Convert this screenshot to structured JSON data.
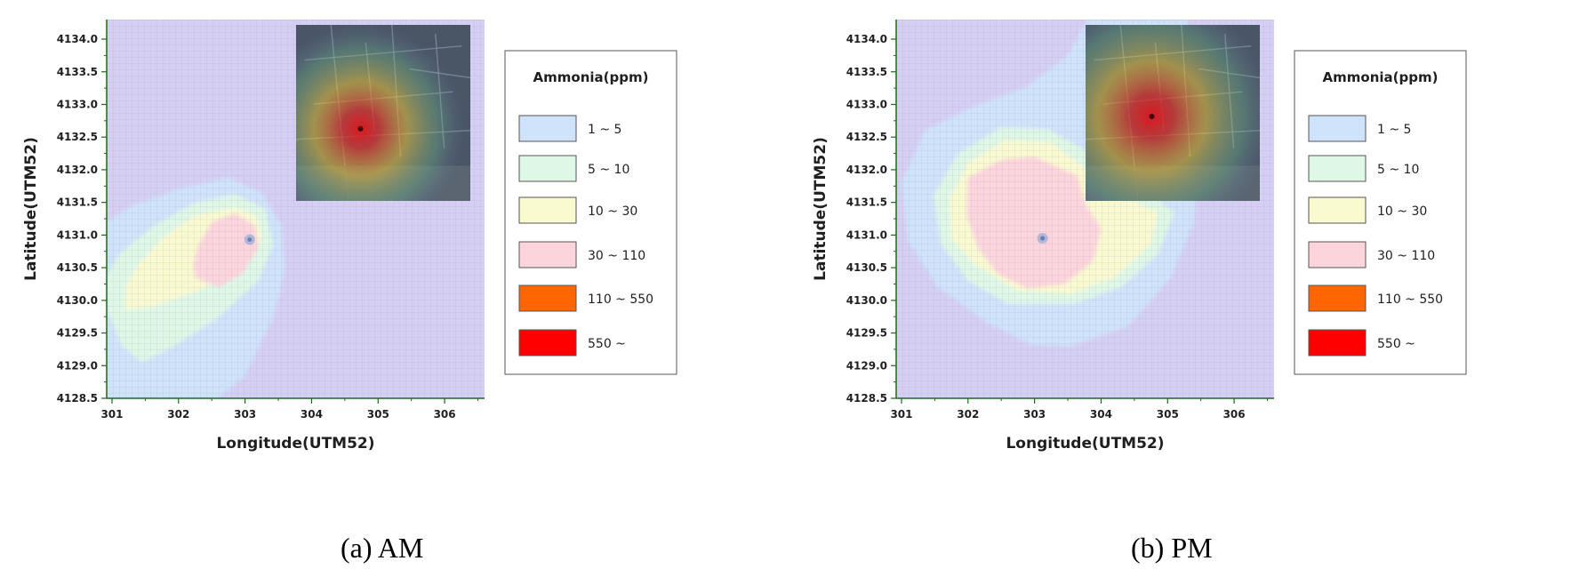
{
  "captions": [
    "(a) AM",
    "(b) PM"
  ],
  "chart_data": [
    {
      "type": "heatmap",
      "xlabel": "Longitude(UTM52)",
      "ylabel": "Latitude(UTM52)",
      "xlim": [
        300.92,
        306.6
      ],
      "ylim": [
        4128.5,
        4134.3
      ],
      "x_ticks": [
        "301",
        "302",
        "303",
        "304",
        "305",
        "306"
      ],
      "y_ticks": [
        "4128.5",
        "4129.0",
        "4129.5",
        "4130.0",
        "4130.5",
        "4131.0",
        "4131.5",
        "4132.0",
        "4132.5",
        "4133.0",
        "4133.5",
        "4134.0"
      ],
      "grid": true,
      "source_point": {
        "x": 303.07,
        "y": 4130.93
      },
      "plume_levels": [
        {
          "level": "1 ~ 5",
          "polygon": [
            [
              300.92,
              4128.5
            ],
            [
              302.6,
              4128.5
            ],
            [
              303.0,
              4128.85
            ],
            [
              303.45,
              4129.8
            ],
            [
              303.6,
              4130.5
            ],
            [
              303.55,
              4131.15
            ],
            [
              303.25,
              4131.65
            ],
            [
              302.75,
              4131.88
            ],
            [
              302.05,
              4131.72
            ],
            [
              301.3,
              4131.45
            ],
            [
              300.92,
              4131.2
            ]
          ]
        },
        {
          "level": "5 ~ 10",
          "polygon": [
            [
              301.45,
              4129.05
            ],
            [
              301.85,
              4129.25
            ],
            [
              302.55,
              4129.7
            ],
            [
              303.2,
              4130.3
            ],
            [
              303.42,
              4130.85
            ],
            [
              303.3,
              4131.4
            ],
            [
              302.85,
              4131.62
            ],
            [
              302.25,
              4131.5
            ],
            [
              301.6,
              4131.12
            ],
            [
              301.1,
              4130.7
            ],
            [
              300.92,
              4130.35
            ],
            [
              300.95,
              4129.8
            ],
            [
              301.15,
              4129.3
            ]
          ]
        },
        {
          "level": "10 ~ 30",
          "polygon": [
            [
              301.2,
              4129.85
            ],
            [
              301.6,
              4129.9
            ],
            [
              302.3,
              4130.15
            ],
            [
              302.95,
              4130.5
            ],
            [
              303.25,
              4130.95
            ],
            [
              303.18,
              4131.28
            ],
            [
              302.85,
              4131.42
            ],
            [
              302.25,
              4131.3
            ],
            [
              301.75,
              4130.95
            ],
            [
              301.4,
              4130.55
            ],
            [
              301.2,
              4130.2
            ]
          ]
        },
        {
          "level": "30 ~ 110",
          "polygon": [
            [
              302.25,
              4130.35
            ],
            [
              302.6,
              4130.2
            ],
            [
              302.95,
              4130.4
            ],
            [
              303.2,
              4130.8
            ],
            [
              303.15,
              4131.15
            ],
            [
              302.85,
              4131.33
            ],
            [
              302.5,
              4131.2
            ],
            [
              302.3,
              4130.85
            ],
            [
              302.22,
              4130.55
            ]
          ]
        }
      ],
      "legend": {
        "title": "Ammonia(ppm)",
        "entries": [
          {
            "label": "1 ~ 5",
            "color": "#cfe4fa"
          },
          {
            "label": "5 ~ 10",
            "color": "#dff8e6"
          },
          {
            "label": "10 ~ 30",
            "color": "#fafad0"
          },
          {
            "label": "30 ~ 110",
            "color": "#fcd5dc"
          },
          {
            "label": "110 ~ 550",
            "color": "#ff6600"
          },
          {
            "label": "550 ~",
            "color": "#ff0000"
          }
        ]
      },
      "background_color": "#d5cff4"
    },
    {
      "type": "heatmap",
      "xlabel": "Longitude(UTM52)",
      "ylabel": "Latitude(UTM52)",
      "xlim": [
        300.92,
        306.6
      ],
      "ylim": [
        4128.5,
        4134.3
      ],
      "x_ticks": [
        "301",
        "302",
        "303",
        "304",
        "305",
        "306"
      ],
      "y_ticks": [
        "4128.5",
        "4129.0",
        "4129.5",
        "4130.0",
        "4130.5",
        "4131.0",
        "4131.5",
        "4132.0",
        "4132.5",
        "4133.0",
        "4133.5",
        "4134.0"
      ],
      "grid": true,
      "source_point": {
        "x": 303.12,
        "y": 4130.95
      },
      "plume_levels": [
        {
          "level": "1 ~ 5",
          "polygon": [
            [
              303.8,
              4134.3
            ],
            [
              305.3,
              4134.3
            ],
            [
              305.25,
              4133.8
            ],
            [
              305.5,
              4132.9
            ],
            [
              305.4,
              4131.2
            ],
            [
              305.05,
              4130.35
            ],
            [
              304.4,
              4129.6
            ],
            [
              303.55,
              4129.3
            ],
            [
              302.95,
              4129.32
            ],
            [
              302.3,
              4129.65
            ],
            [
              301.55,
              4130.2
            ],
            [
              301.1,
              4130.9
            ],
            [
              301.0,
              4131.8
            ],
            [
              301.35,
              4132.6
            ],
            [
              302.1,
              4132.98
            ],
            [
              302.85,
              4133.25
            ],
            [
              303.5,
              4133.75
            ]
          ]
        },
        {
          "level": "5 ~ 10",
          "polygon": [
            [
              302.6,
              4129.95
            ],
            [
              303.6,
              4129.95
            ],
            [
              304.3,
              4130.2
            ],
            [
              304.85,
              4130.7
            ],
            [
              305.1,
              4131.35
            ],
            [
              304.55,
              4131.75
            ],
            [
              303.85,
              4132.25
            ],
            [
              303.2,
              4132.62
            ],
            [
              302.5,
              4132.65
            ],
            [
              301.85,
              4132.25
            ],
            [
              301.48,
              4131.6
            ],
            [
              301.6,
              4130.85
            ],
            [
              302.0,
              4130.3
            ]
          ]
        },
        {
          "level": "10 ~ 30",
          "polygon": [
            [
              302.75,
              4130.15
            ],
            [
              303.55,
              4130.1
            ],
            [
              304.2,
              4130.35
            ],
            [
              304.75,
              4130.85
            ],
            [
              304.85,
              4131.35
            ],
            [
              304.3,
              4131.6
            ],
            [
              303.85,
              4131.95
            ],
            [
              303.25,
              4132.42
            ],
            [
              302.55,
              4132.45
            ],
            [
              302.0,
              4132.1
            ],
            [
              301.72,
              4131.55
            ],
            [
              301.75,
              4130.95
            ],
            [
              302.1,
              4130.55
            ]
          ]
        },
        {
          "level": "30 ~ 110",
          "polygon": [
            [
              302.9,
              4130.18
            ],
            [
              303.45,
              4130.25
            ],
            [
              303.88,
              4130.6
            ],
            [
              304.0,
              4131.1
            ],
            [
              303.75,
              4131.5
            ],
            [
              303.65,
              4131.9
            ],
            [
              303.0,
              4132.2
            ],
            [
              302.5,
              4132.15
            ],
            [
              302.0,
              4131.88
            ],
            [
              301.98,
              4131.3
            ],
            [
              302.15,
              4130.8
            ],
            [
              302.45,
              4130.4
            ]
          ]
        }
      ],
      "legend": {
        "title": "Ammonia(ppm)",
        "entries": [
          {
            "label": "1 ~ 5",
            "color": "#cfe4fa"
          },
          {
            "label": "5 ~ 10",
            "color": "#dff8e6"
          },
          {
            "label": "10 ~ 30",
            "color": "#fafad0"
          },
          {
            "label": "30 ~ 110",
            "color": "#fcd5dc"
          },
          {
            "label": "110 ~ 550",
            "color": "#ff6600"
          },
          {
            "label": "550 ~",
            "color": "#ff0000"
          }
        ]
      },
      "background_color": "#d5cff4"
    }
  ]
}
